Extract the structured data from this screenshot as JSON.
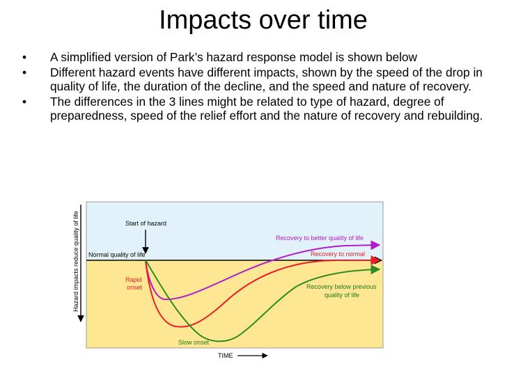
{
  "title": "Impacts over time",
  "bullets": [
    "A simplified version of Park’s hazard response model is shown below",
    "Different hazard events have different impacts, shown by the speed of the drop in quality of life, the duration of the decline, and the speed and nature of recovery.",
    "The differences in the 3 lines might be related to type of hazard, degree of preparedness, speed of the relief effort and the nature of recovery and rebuilding."
  ],
  "bullet_glyph": "•",
  "diagram": {
    "y_axis_label": "Hazard impacts reduce quality of life",
    "x_axis_label": "TIME",
    "start_of_hazard": "Start of hazard",
    "normal_quality": "Normal quality of life",
    "rapid_onset": [
      "Rapid",
      "onset"
    ],
    "slow_onset": "Slow onset",
    "recovery_better": "Recovery to better quality of life",
    "recovery_normal": "Recovery to normal",
    "recovery_below": [
      "Recovery below previous",
      "quality of life"
    ],
    "colors": {
      "sky": "#e2f2fa",
      "ground": "#fde793",
      "purple": "#b21ad0",
      "red": "#ec1c24",
      "green": "#2f8a22",
      "label_purple": "#b21ad0",
      "label_red": "#ec1c24",
      "label_green": "#1f7a1a"
    }
  }
}
